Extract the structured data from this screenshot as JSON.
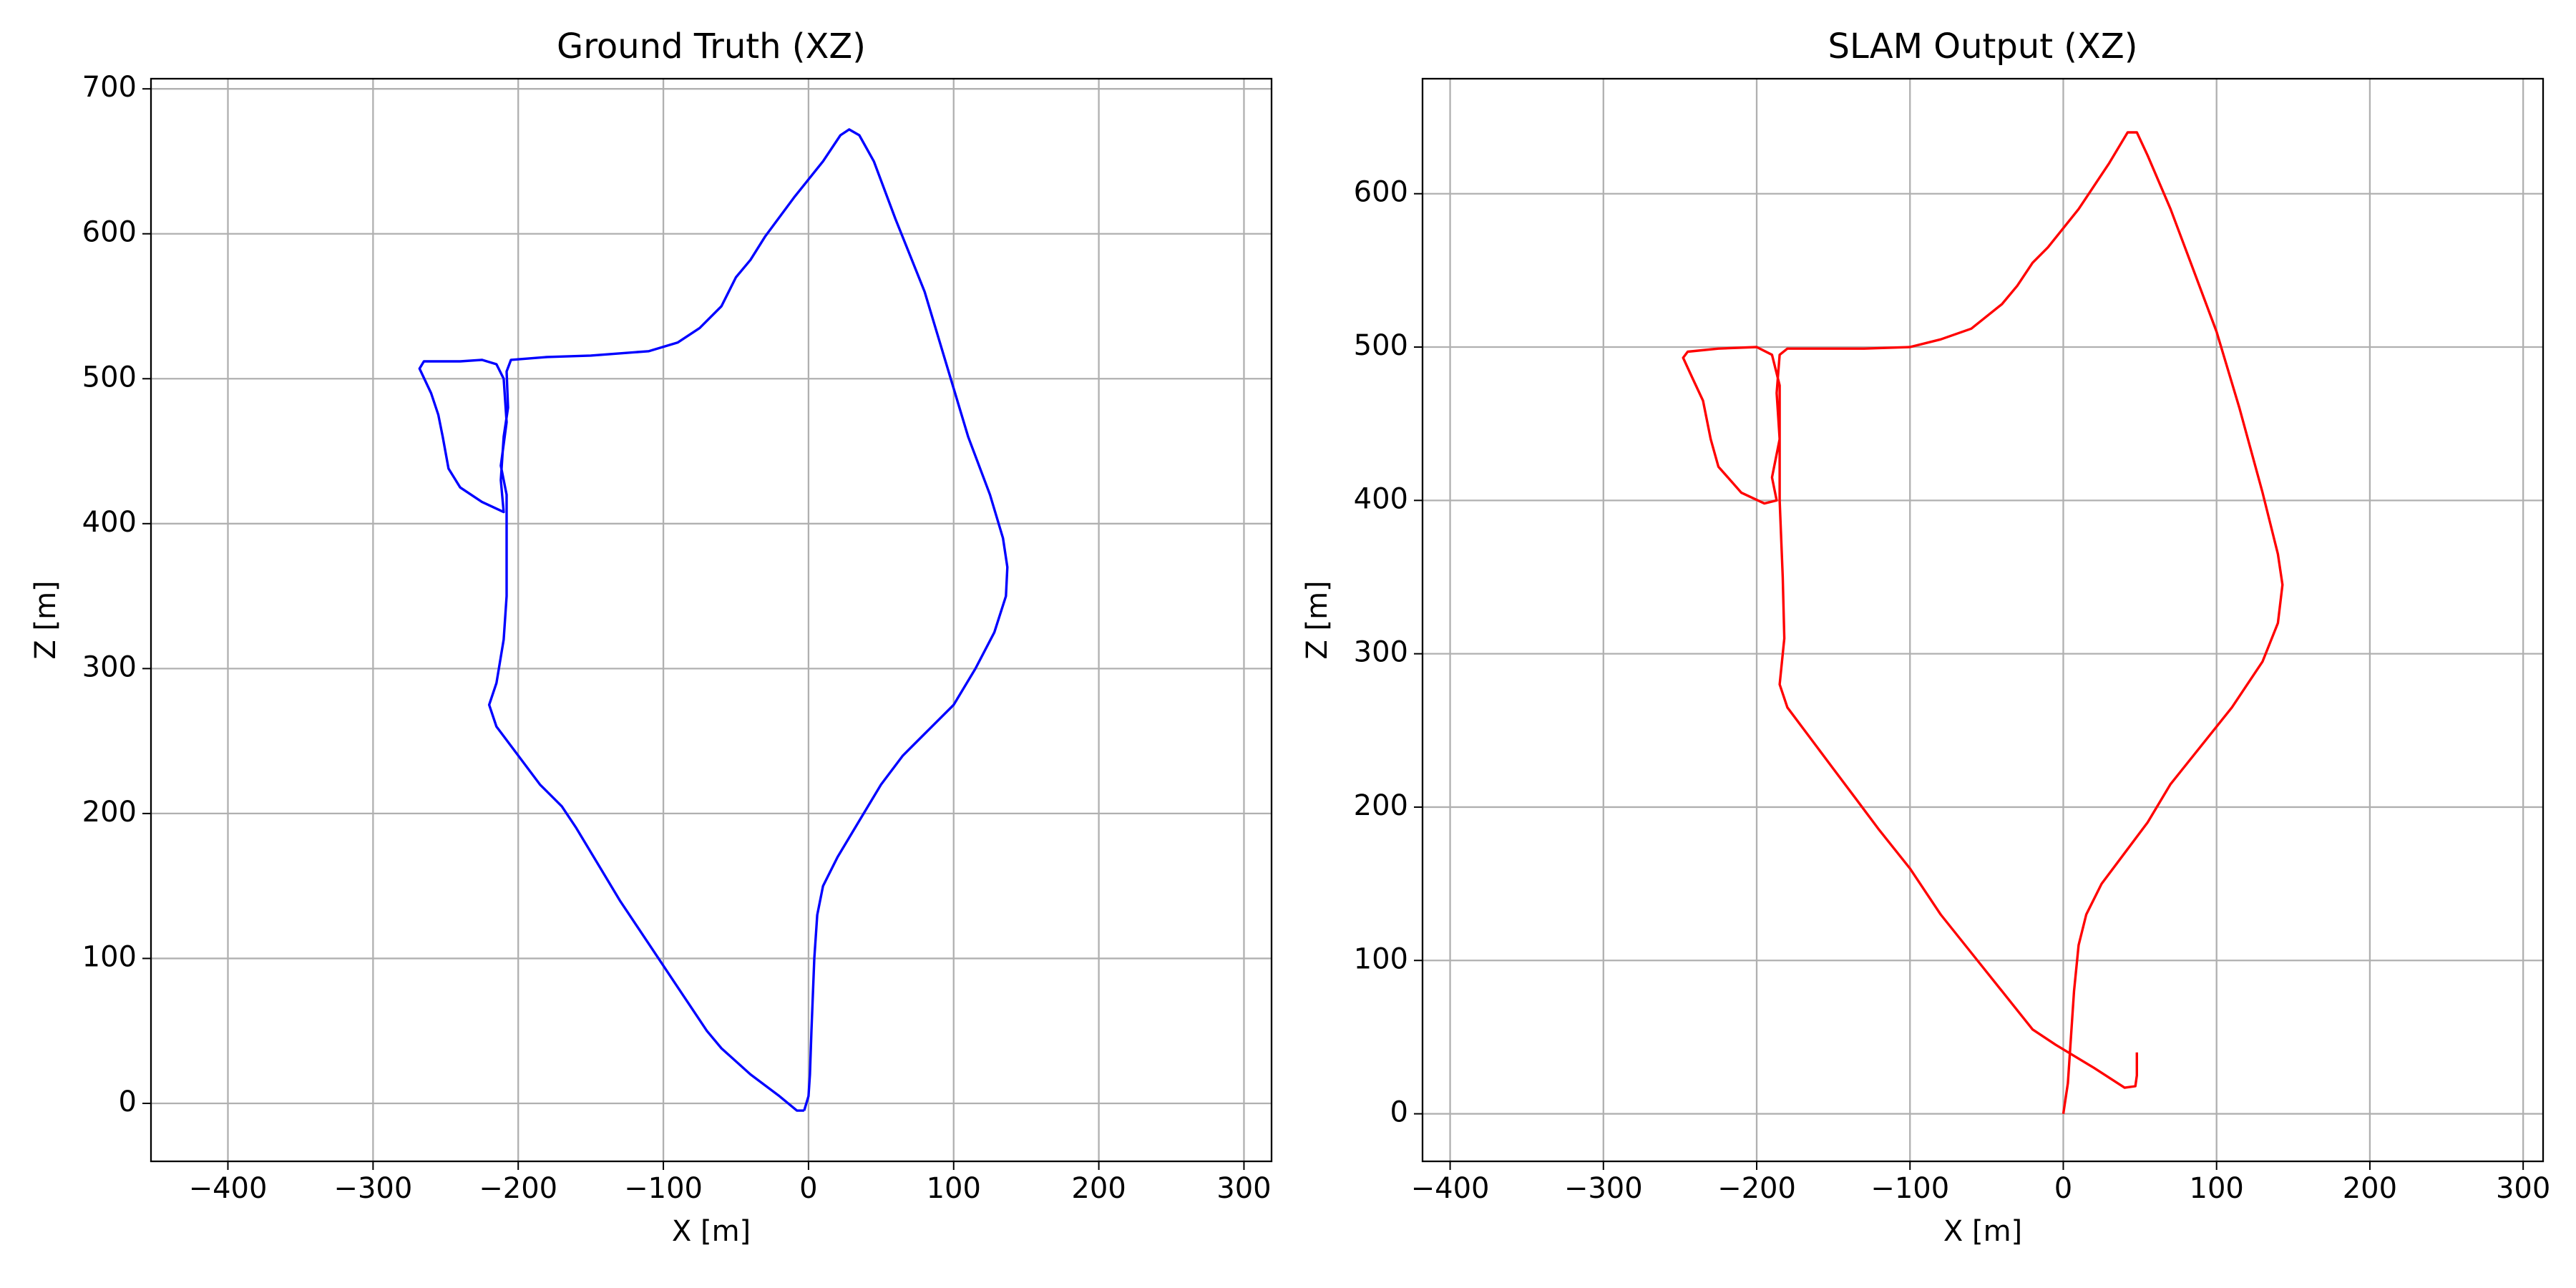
{
  "chart_data": [
    {
      "type": "line",
      "title": "Ground Truth (XZ)",
      "xlabel": "X [m]",
      "ylabel": "Z [m]",
      "color": "#0000ff",
      "grid": true,
      "xlim": [
        -453,
        319
      ],
      "ylim": [
        -40,
        707
      ],
      "xticks": [
        {
          "value": -400,
          "label": "−400"
        },
        {
          "value": -300,
          "label": "−300"
        },
        {
          "value": -200,
          "label": "−200"
        },
        {
          "value": -100,
          "label": "−100"
        },
        0,
        100,
        200,
        300
      ],
      "yticks": [
        0,
        100,
        200,
        300,
        400,
        500,
        600,
        700
      ],
      "x": [
        -3,
        0,
        1,
        2,
        4,
        6,
        10,
        20,
        35,
        50,
        65,
        80,
        100,
        115,
        128,
        136,
        137,
        134,
        125,
        110,
        95,
        80,
        60,
        45,
        35,
        28,
        22,
        10,
        -10,
        -30,
        -40,
        -50,
        -60,
        -75,
        -90,
        -110,
        -150,
        -180,
        -205,
        -208,
        -207,
        -210,
        -212,
        -210,
        -225,
        -240,
        -248,
        -252,
        -255,
        -260,
        -268,
        -265,
        -240,
        -225,
        -215,
        -210,
        -208,
        -212,
        -208,
        -208,
        -208,
        -210,
        -215,
        -220,
        -215,
        -200,
        -185,
        -170,
        -160,
        -145,
        -130,
        -110,
        -90,
        -70,
        -60,
        -40,
        -20,
        -8,
        -3
      ],
      "values": [
        -5,
        5,
        20,
        50,
        100,
        130,
        150,
        170,
        195,
        220,
        240,
        255,
        275,
        300,
        325,
        350,
        370,
        390,
        420,
        460,
        510,
        560,
        610,
        650,
        668,
        672,
        668,
        650,
        625,
        598,
        582,
        570,
        550,
        535,
        525,
        519,
        516,
        515,
        513,
        505,
        480,
        460,
        430,
        408,
        415,
        425,
        438,
        460,
        475,
        490,
        507,
        512,
        512,
        513,
        510,
        500,
        470,
        440,
        420,
        400,
        350,
        320,
        290,
        275,
        260,
        240,
        220,
        205,
        190,
        165,
        140,
        110,
        80,
        50,
        38,
        20,
        5,
        -5,
        -5
      ]
    },
    {
      "type": "line",
      "title": "SLAM Output (XZ)",
      "xlabel": "X [m]",
      "ylabel": "Z [m]",
      "color": "#ff0000",
      "grid": true,
      "xlim": [
        -418,
        313
      ],
      "ylim": [
        -31,
        675
      ],
      "xticks": [
        {
          "value": -400,
          "label": "−400"
        },
        {
          "value": -300,
          "label": "−300"
        },
        {
          "value": -200,
          "label": "−200"
        },
        {
          "value": -100,
          "label": "−100"
        },
        0,
        100,
        200,
        300
      ],
      "yticks": [
        0,
        100,
        200,
        300,
        400,
        500,
        600
      ],
      "x": [
        0,
        3,
        5,
        7,
        10,
        15,
        25,
        40,
        55,
        70,
        90,
        110,
        130,
        140,
        143,
        140,
        130,
        115,
        100,
        85,
        70,
        55,
        48,
        42,
        30,
        10,
        -10,
        -20,
        -30,
        -40,
        -60,
        -80,
        -100,
        -130,
        -160,
        -180,
        -185,
        -187,
        -185,
        -190,
        -187,
        -195,
        -210,
        -225,
        -230,
        -233,
        -235,
        -242,
        -248,
        -245,
        -225,
        -200,
        -190,
        -185,
        -185,
        -185,
        -183,
        -182,
        -185,
        -180,
        -165,
        -150,
        -135,
        -120,
        -100,
        -80,
        -60,
        -40,
        -20,
        -5,
        20,
        40,
        47,
        48,
        48
      ],
      "values": [
        0,
        20,
        50,
        80,
        110,
        130,
        150,
        170,
        190,
        215,
        240,
        265,
        295,
        320,
        345,
        365,
        405,
        460,
        510,
        550,
        590,
        625,
        640,
        640,
        620,
        590,
        565,
        555,
        540,
        528,
        512,
        505,
        500,
        499,
        499,
        499,
        495,
        470,
        440,
        415,
        400,
        398,
        405,
        422,
        440,
        455,
        465,
        480,
        493,
        497,
        499,
        500,
        495,
        475,
        440,
        400,
        350,
        310,
        280,
        265,
        245,
        225,
        205,
        185,
        160,
        130,
        105,
        80,
        55,
        45,
        30,
        17,
        18,
        25,
        40
      ]
    }
  ]
}
